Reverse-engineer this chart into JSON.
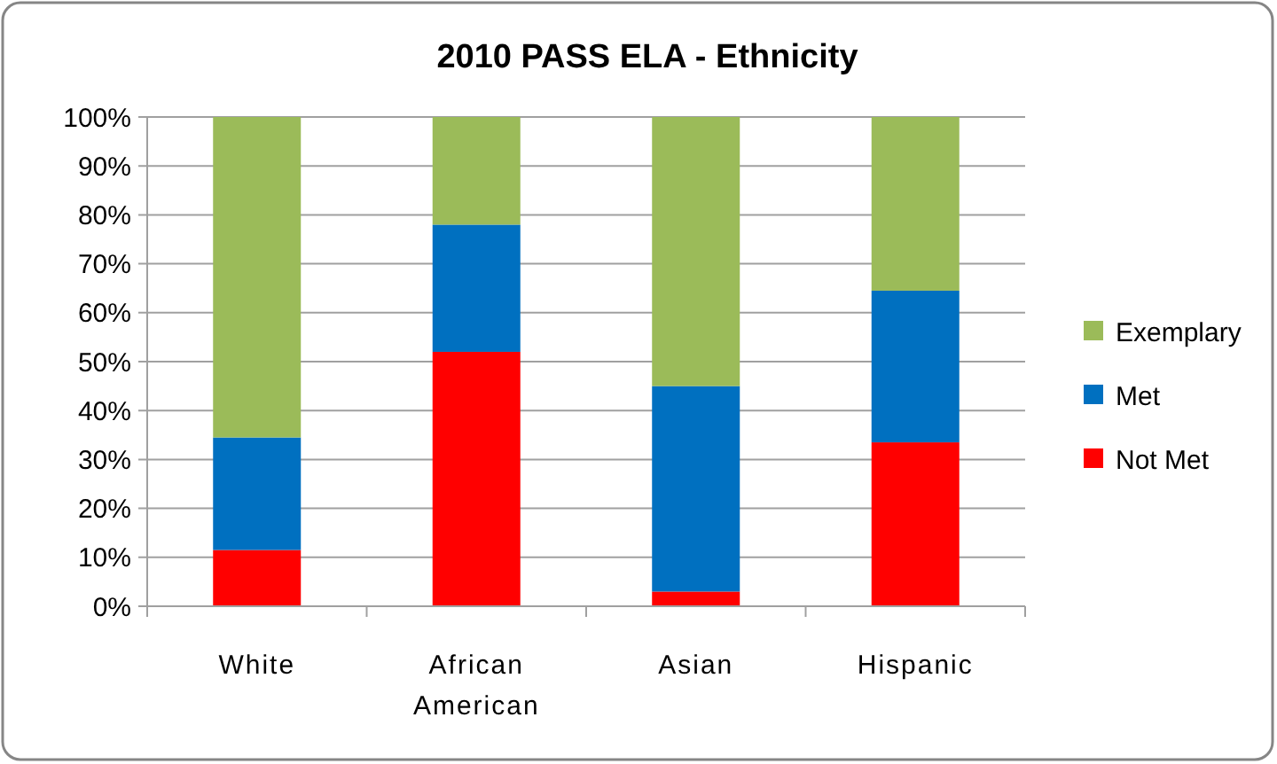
{
  "chart_data": {
    "type": "bar",
    "title": "2010 PASS ELA - Ethnicity",
    "categories": [
      "White",
      "African American",
      "Asian",
      "Hispanic"
    ],
    "series": [
      {
        "name": "Not Met",
        "color": "#ff0000",
        "values": [
          11.5,
          52,
          3,
          33.5
        ]
      },
      {
        "name": "Met",
        "color": "#0070c0",
        "values": [
          23,
          26,
          42,
          31
        ]
      },
      {
        "name": "Exemplary",
        "color": "#9bbb59",
        "values": [
          65.5,
          22,
          55,
          35.5
        ]
      }
    ],
    "stacked": true,
    "ylim": [
      0,
      100
    ],
    "yticks": [
      {
        "value": 0,
        "label": "0%"
      },
      {
        "value": 10,
        "label": "10%"
      },
      {
        "value": 20,
        "label": "20%"
      },
      {
        "value": 30,
        "label": "30%"
      },
      {
        "value": 40,
        "label": "40%"
      },
      {
        "value": 50,
        "label": "50%"
      },
      {
        "value": 60,
        "label": "60%"
      },
      {
        "value": 70,
        "label": "70%"
      },
      {
        "value": 80,
        "label": "80%"
      },
      {
        "value": 90,
        "label": "90%"
      },
      {
        "value": 100,
        "label": "100%"
      }
    ],
    "grid": "y",
    "legend": "right"
  }
}
